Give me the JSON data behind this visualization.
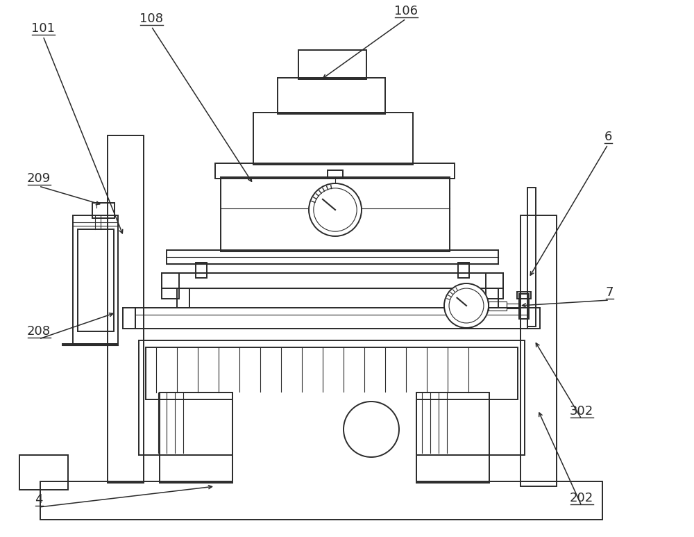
{
  "bg_color": "#ffffff",
  "line_color": "#2a2a2a",
  "lw": 1.4,
  "lw2": 0.8,
  "label_fontsize": 13
}
